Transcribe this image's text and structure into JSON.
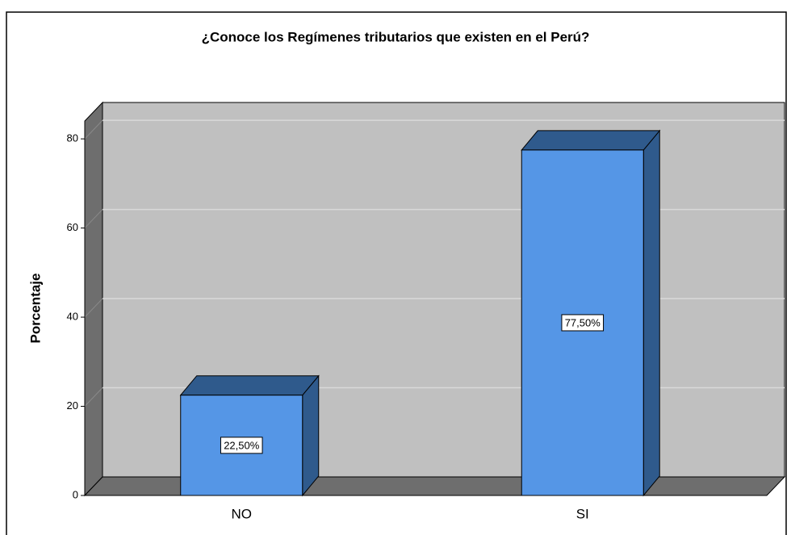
{
  "chart_data": {
    "type": "bar3d",
    "title": "¿Conoce los Regímenes tributarios que existen en el Perú?",
    "y_label": "Porcentaje",
    "categories": [
      "NO",
      "SI"
    ],
    "values": [
      22.5,
      77.5
    ],
    "value_labels": [
      "22,50%",
      "77,50%"
    ],
    "color": "#5596e6",
    "ylim": [
      0,
      84
    ],
    "yticks": [
      0,
      20,
      40,
      60,
      80
    ],
    "grid": true
  }
}
